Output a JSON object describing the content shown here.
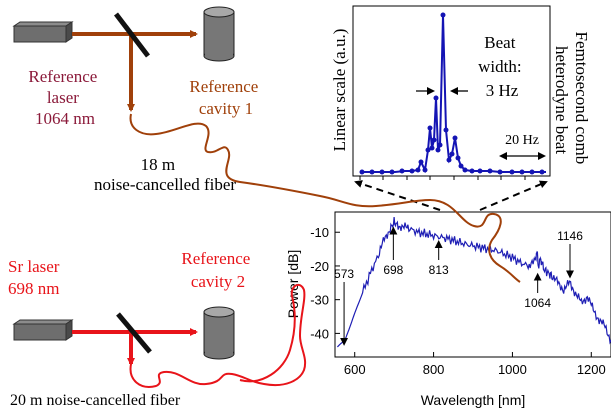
{
  "top": {
    "laser_label_lines": [
      "Reference",
      "laser",
      "1064 nm"
    ],
    "cavity_label_lines": [
      "Reference",
      "cavity 1"
    ],
    "fiber_label_lines": [
      "18 m",
      "noise-cancelled fiber"
    ],
    "colors": {
      "laser_text": "#8b1a3a",
      "beam": "#a0400a",
      "cavity_text": "#a0400a"
    }
  },
  "bottom": {
    "laser_label_lines": [
      "Sr laser",
      "698 nm"
    ],
    "cavity_label_lines": [
      "Reference",
      "cavity 2"
    ],
    "fiber_label": "20 m noise-cancelled fiber",
    "colors": {
      "text": "#e8141a",
      "beam": "#e8141a"
    }
  },
  "beat_chart": {
    "ylabel": "Linear scale (a.u.)",
    "annotation_lines": [
      "Beat",
      "width:",
      "3 Hz"
    ],
    "scale_label": "20 Hz",
    "side_label_lines": [
      "Femtosecond comb",
      "heterodyne beat"
    ],
    "line_color": "#1414b4"
  },
  "chart_data": {
    "type": "line",
    "title": "",
    "xlabel": "Wavelength [nm]",
    "ylabel": "Power [dB]",
    "xlim": [
      550,
      1250
    ],
    "ylim": [
      -47,
      -4
    ],
    "xticks": [
      600,
      800,
      1000,
      1200
    ],
    "yticks": [
      -10,
      -20,
      -30,
      -40
    ],
    "annotations": [
      {
        "label": "573",
        "x": 573,
        "y": -44
      },
      {
        "label": "698",
        "x": 698,
        "y": -8
      },
      {
        "label": "813",
        "x": 813,
        "y": -12
      },
      {
        "label": "1064",
        "x": 1064,
        "y": -22
      },
      {
        "label": "1146",
        "x": 1146,
        "y": -24
      }
    ],
    "series": [
      {
        "color": "#1e1eb4",
        "x": [
          556,
          565,
          575,
          585,
          600,
          620,
          640,
          660,
          675,
          690,
          700,
          710,
          725,
          740,
          760,
          780,
          800,
          820,
          840,
          860,
          880,
          900,
          920,
          940,
          960,
          980,
          1000,
          1020,
          1040,
          1055,
          1062,
          1066,
          1072,
          1080,
          1090,
          1100,
          1115,
          1130,
          1145,
          1160,
          1175,
          1190,
          1205,
          1220,
          1235,
          1250
        ],
        "values": [
          -44,
          -43,
          -42,
          -39,
          -34,
          -28,
          -22,
          -17,
          -12,
          -9,
          -7,
          -8,
          -8.5,
          -9,
          -10,
          -10.5,
          -11,
          -11.5,
          -12,
          -12.8,
          -13.5,
          -14,
          -14.5,
          -15,
          -15.5,
          -16.5,
          -17.5,
          -19,
          -20,
          -19,
          -16,
          -20,
          -18,
          -21,
          -22,
          -23,
          -25,
          -27,
          -25,
          -28,
          -31,
          -29,
          -33,
          -36,
          -38,
          -42
        ]
      }
    ]
  }
}
